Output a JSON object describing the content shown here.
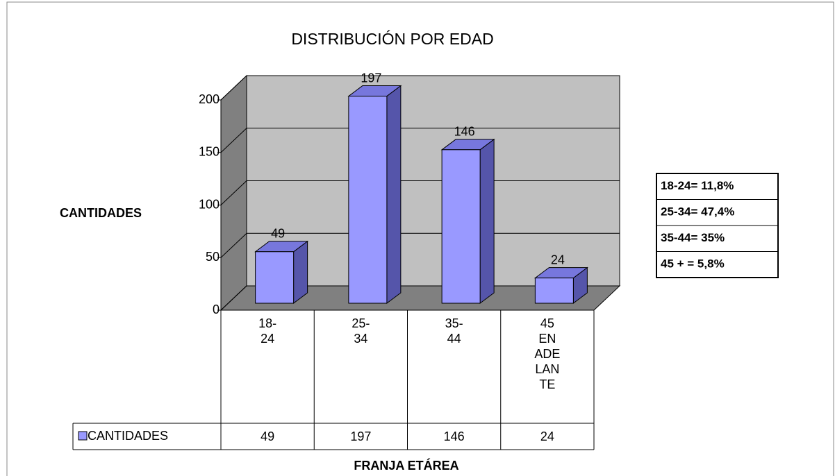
{
  "chart_data": {
    "type": "bar3d",
    "title": "DISTRIBUCIÓN POR EDAD",
    "y_label": "CANTIDADES",
    "x_label": "FRANJA ETÁREA",
    "categories": [
      "18-24",
      "25-34",
      "35-44",
      "45 EN ADELANTE"
    ],
    "series": [
      {
        "name": "CANTIDADES",
        "color": "#9999ff",
        "values": [
          49,
          197,
          146,
          24
        ]
      }
    ],
    "ylim": [
      0,
      200
    ],
    "yticks": [
      0,
      50,
      100,
      150,
      200
    ],
    "grid": true,
    "annotations": [
      "18-24= 11,8%",
      "25-34= 47,4%",
      "35-44= 35%",
      "45 + = 5,8%"
    ]
  }
}
